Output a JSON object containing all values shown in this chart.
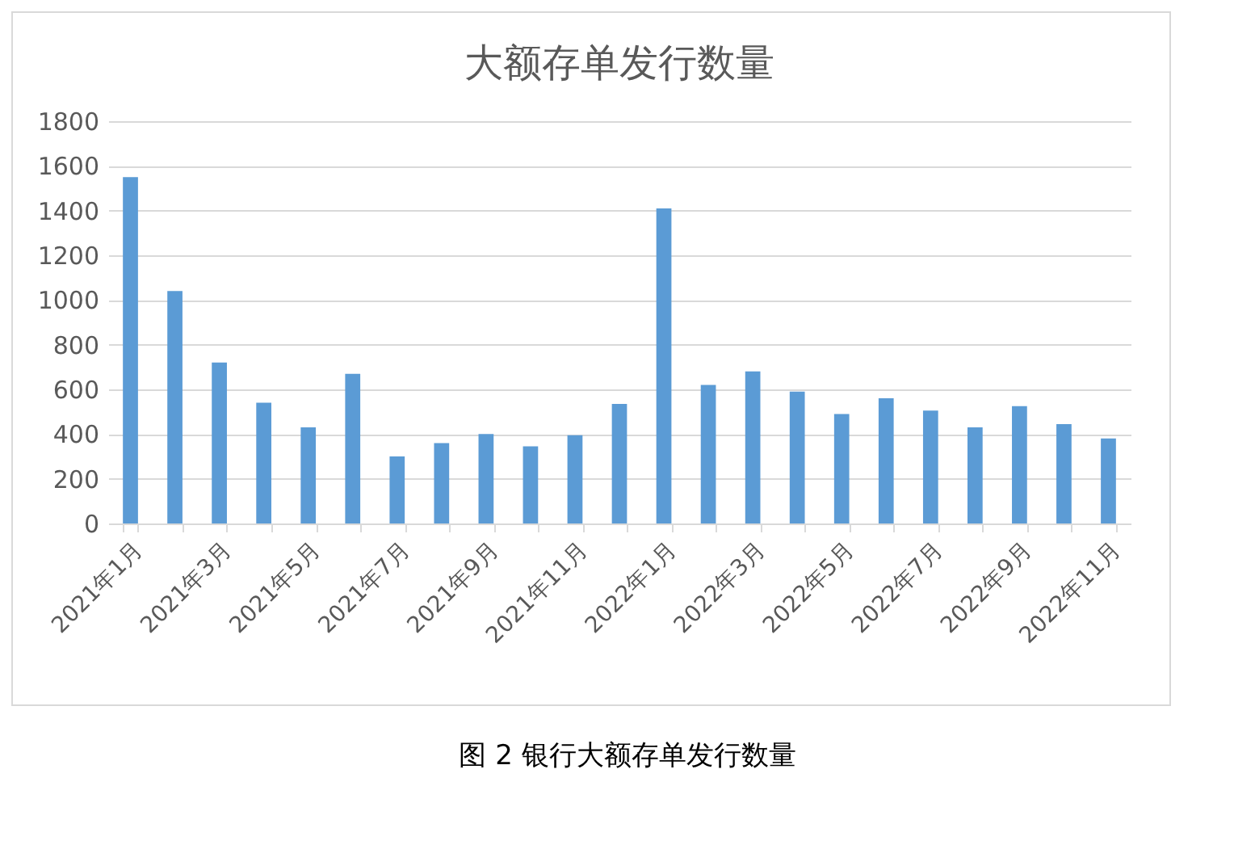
{
  "chart_data": {
    "type": "bar",
    "title": "大额存单发行数量",
    "categories": [
      "2021年1月",
      null,
      "2021年3月",
      null,
      "2021年5月",
      null,
      "2021年7月",
      null,
      "2021年9月",
      null,
      "2021年11月",
      null,
      "2022年1月",
      null,
      "2022年3月",
      null,
      "2022年5月",
      null,
      "2022年7月",
      null,
      "2022年9月",
      null,
      "2022年11月"
    ],
    "values": [
      1550,
      1040,
      720,
      540,
      430,
      670,
      300,
      360,
      400,
      345,
      395,
      535,
      1410,
      620,
      680,
      590,
      490,
      560,
      505,
      430,
      525,
      445,
      380
    ],
    "color": "#5b9bd5",
    "ylim": [
      0,
      1800
    ],
    "yticks": [
      0,
      200,
      400,
      600,
      800,
      1000,
      1200,
      1400,
      1600,
      1800
    ],
    "grid": "y",
    "annotations": [
      "图 2 银行大额存单发行数量"
    ]
  }
}
